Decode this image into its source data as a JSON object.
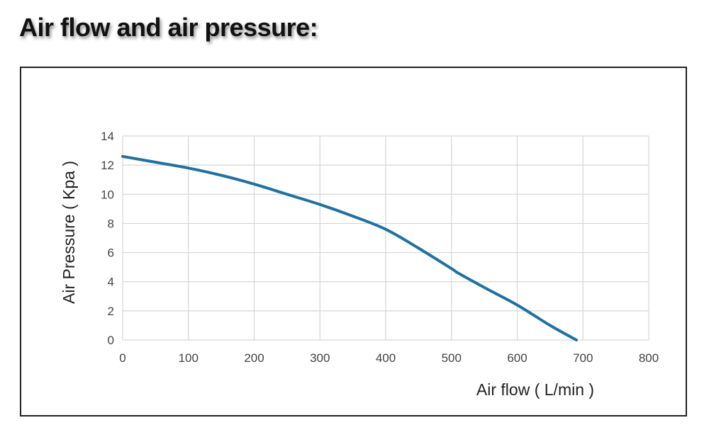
{
  "page": {
    "title": "Air flow and air pressure:"
  },
  "chart_data": {
    "type": "line",
    "title": "",
    "xlabel": "Air flow ( L/min )",
    "ylabel": "Air Pressure ( Kpa )",
    "xlim": [
      0,
      800
    ],
    "ylim": [
      0,
      14
    ],
    "x_ticks": [
      0,
      100,
      200,
      300,
      400,
      500,
      600,
      700,
      800
    ],
    "y_ticks": [
      0,
      2,
      4,
      6,
      8,
      10,
      12,
      14
    ],
    "grid": true,
    "legend": "none",
    "series": [
      {
        "color": "#2171a0",
        "x": [
          0,
          50,
          100,
          150,
          200,
          250,
          300,
          350,
          400,
          450,
          500,
          510,
          550,
          600,
          650,
          690
        ],
        "y": [
          12.6,
          12.2,
          11.8,
          11.3,
          10.7,
          10.0,
          9.3,
          8.5,
          7.6,
          6.3,
          4.9,
          4.6,
          3.6,
          2.4,
          1.0,
          0
        ]
      }
    ]
  }
}
